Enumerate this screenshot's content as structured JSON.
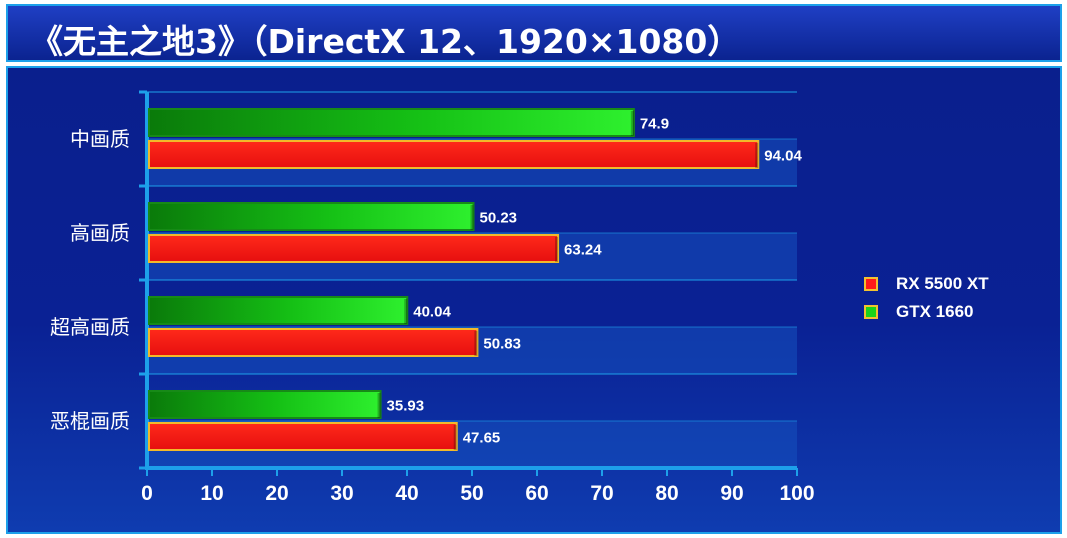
{
  "title": "《无主之地3》（DirectX 12、1920×1080）",
  "colors": {
    "rx5500xt": "#ff1a1a",
    "gtx1660": "#19d419",
    "bar_border": "#f2b92a",
    "axis": "#1da0ea",
    "background": "#0a1f8d"
  },
  "chart_data": {
    "type": "bar",
    "orientation": "horizontal",
    "title": "《无主之地3》（DirectX 12、1920×1080）",
    "categories": [
      "中画质",
      "高画质",
      "超高画质",
      "恶棍画质"
    ],
    "series": [
      {
        "name": "GTX 1660",
        "color": "#19d419",
        "values": [
          74.9,
          50.23,
          40.04,
          35.93
        ]
      },
      {
        "name": "RX 5500 XT",
        "color": "#ff1a1a",
        "values": [
          94.04,
          63.24,
          50.83,
          47.65
        ]
      }
    ],
    "xlim": [
      0,
      100
    ],
    "xticks": [
      0,
      10,
      20,
      30,
      40,
      50,
      60,
      70,
      80,
      90,
      100
    ],
    "value_labels": {
      "GTX 1660": [
        "74.9",
        "50.23",
        "40.04",
        "35.93"
      ],
      "RX 5500 XT": [
        "94.04",
        "63.24",
        "50.83",
        "47.65"
      ]
    },
    "legend": {
      "position": "right",
      "entries": [
        {
          "label": "RX 5500 XT",
          "color": "#ff1a1a"
        },
        {
          "label": "GTX 1660",
          "color": "#19d419"
        }
      ]
    },
    "grid": true
  }
}
